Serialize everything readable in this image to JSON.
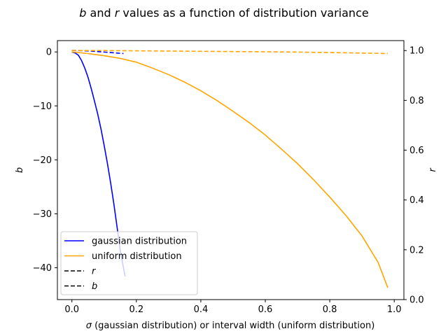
{
  "chart_data": {
    "type": "line",
    "title_pre": "b",
    "title_mid": " and ",
    "title_r": "r",
    "title_post": " values as a function of distribution variance",
    "xlabel_sym": "σ",
    "xlabel_rest": " (gaussian distribution) or interval width (uniform distribution)",
    "ylabel_left": "b",
    "ylabel_right": "r",
    "xlim": [
      -0.045,
      1.03
    ],
    "ylim_left": [
      -45.9,
      2.1
    ],
    "ylim_right": [
      0.0,
      1.04
    ],
    "xticks": [
      0.0,
      0.2,
      0.4,
      0.6,
      0.8,
      1.0
    ],
    "xtick_labels": [
      "0.0",
      "0.2",
      "0.4",
      "0.6",
      "0.8",
      "1.0"
    ],
    "yticks_left": [
      0,
      -10,
      -20,
      -30,
      -40
    ],
    "ytick_labels_left": [
      "0",
      "−10",
      "−20",
      "−30",
      "−40"
    ],
    "yticks_right": [
      0.0,
      0.2,
      0.4,
      0.6,
      0.8,
      1.0
    ],
    "ytick_labels_right": [
      "0.0",
      "0.2",
      "0.4",
      "0.6",
      "0.8",
      "1.0"
    ],
    "colors": {
      "gaussian": "#0000ff",
      "uniform": "#ffa500",
      "legend_dash": "#000000"
    },
    "series": [
      {
        "name": "gaussian distribution",
        "axis": "b",
        "style": "solid",
        "color": "gaussian",
        "x": [
          0.0,
          0.01,
          0.02,
          0.03,
          0.04,
          0.05,
          0.06,
          0.07,
          0.08,
          0.09,
          0.1,
          0.11,
          0.12,
          0.13,
          0.14,
          0.15,
          0.16,
          0.165
        ],
        "y": [
          0.0,
          -0.2,
          -0.6,
          -1.6,
          -3.0,
          -4.7,
          -6.8,
          -9.1,
          -11.5,
          -14.2,
          -17.3,
          -20.6,
          -24.2,
          -28.1,
          -32.4,
          -36.8,
          -40.0,
          -41.6
        ]
      },
      {
        "name": "uniform distribution",
        "axis": "b",
        "style": "solid",
        "color": "uniform",
        "x": [
          0.0,
          0.05,
          0.1,
          0.15,
          0.2,
          0.25,
          0.3,
          0.35,
          0.4,
          0.45,
          0.5,
          0.55,
          0.6,
          0.65,
          0.7,
          0.75,
          0.8,
          0.85,
          0.9,
          0.95,
          0.98
        ],
        "y": [
          0.0,
          -0.3,
          -0.7,
          -1.2,
          -1.9,
          -3.0,
          -4.2,
          -5.6,
          -7.2,
          -9.0,
          -11.0,
          -13.1,
          -15.4,
          -18.0,
          -20.7,
          -23.7,
          -26.9,
          -30.3,
          -34.1,
          -39.0,
          -43.7
        ]
      },
      {
        "name": "gaussian r",
        "axis": "r",
        "style": "dashed",
        "color": "gaussian",
        "x": [
          0.0,
          0.02,
          0.04,
          0.06,
          0.08,
          0.1,
          0.12,
          0.14,
          0.16
        ],
        "y": [
          1.0,
          1.0,
          0.999,
          0.998,
          0.996,
          0.994,
          0.992,
          0.99,
          0.988
        ]
      },
      {
        "name": "uniform r",
        "axis": "r",
        "style": "dashed",
        "color": "uniform",
        "x": [
          0.0,
          0.1,
          0.2,
          0.3,
          0.4,
          0.5,
          0.6,
          0.7,
          0.8,
          0.9,
          0.98
        ],
        "y": [
          1.0,
          1.0,
          0.999,
          0.998,
          0.997,
          0.996,
          0.995,
          0.994,
          0.992,
          0.99,
          0.988
        ]
      }
    ],
    "legend": {
      "placement": "lower-left",
      "entries": [
        {
          "label": "gaussian distribution",
          "color": "gaussian",
          "style": "solid"
        },
        {
          "label": "uniform distribution",
          "color": "uniform",
          "style": "solid"
        },
        {
          "label": "r",
          "color": "legend_dash",
          "style": "dashed",
          "italic": true
        },
        {
          "label": "b",
          "color": "legend_dash",
          "style": "dashed",
          "italic": true
        }
      ]
    }
  }
}
